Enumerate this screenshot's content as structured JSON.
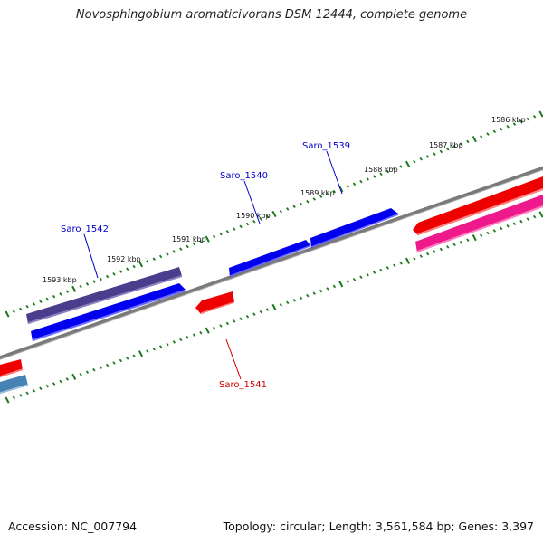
{
  "title": "Novosphingobium aromaticivorans DSM 12444, complete genome",
  "footer": {
    "accession": "Accession: NC_007794",
    "summary": "Topology: circular; Length: 3,561,584 bp; Genes: 3,397"
  },
  "scale_labels": [
    "1586 kbp",
    "1587 kbp",
    "1588 kbp",
    "1589 kbp",
    "1590 kbp",
    "1591 kbp",
    "1592 kbp",
    "1593 kbp"
  ],
  "gene_labels": {
    "saro_1539": "Saro_1539",
    "saro_1540": "Saro_1540",
    "saro_1541": "Saro_1541",
    "saro_1542": "Saro_1542"
  },
  "colors": {
    "backbone": "#808080",
    "ticks": "#1a7a1a",
    "forward_gene": "#0000ee",
    "reverse_gene": "#ee0000",
    "dark_purple": "#4a3d8c",
    "pink": "#ee1a8c",
    "steel_blue": "#4682b4",
    "label_blue": "#0000cc",
    "label_red": "#cc0000"
  }
}
